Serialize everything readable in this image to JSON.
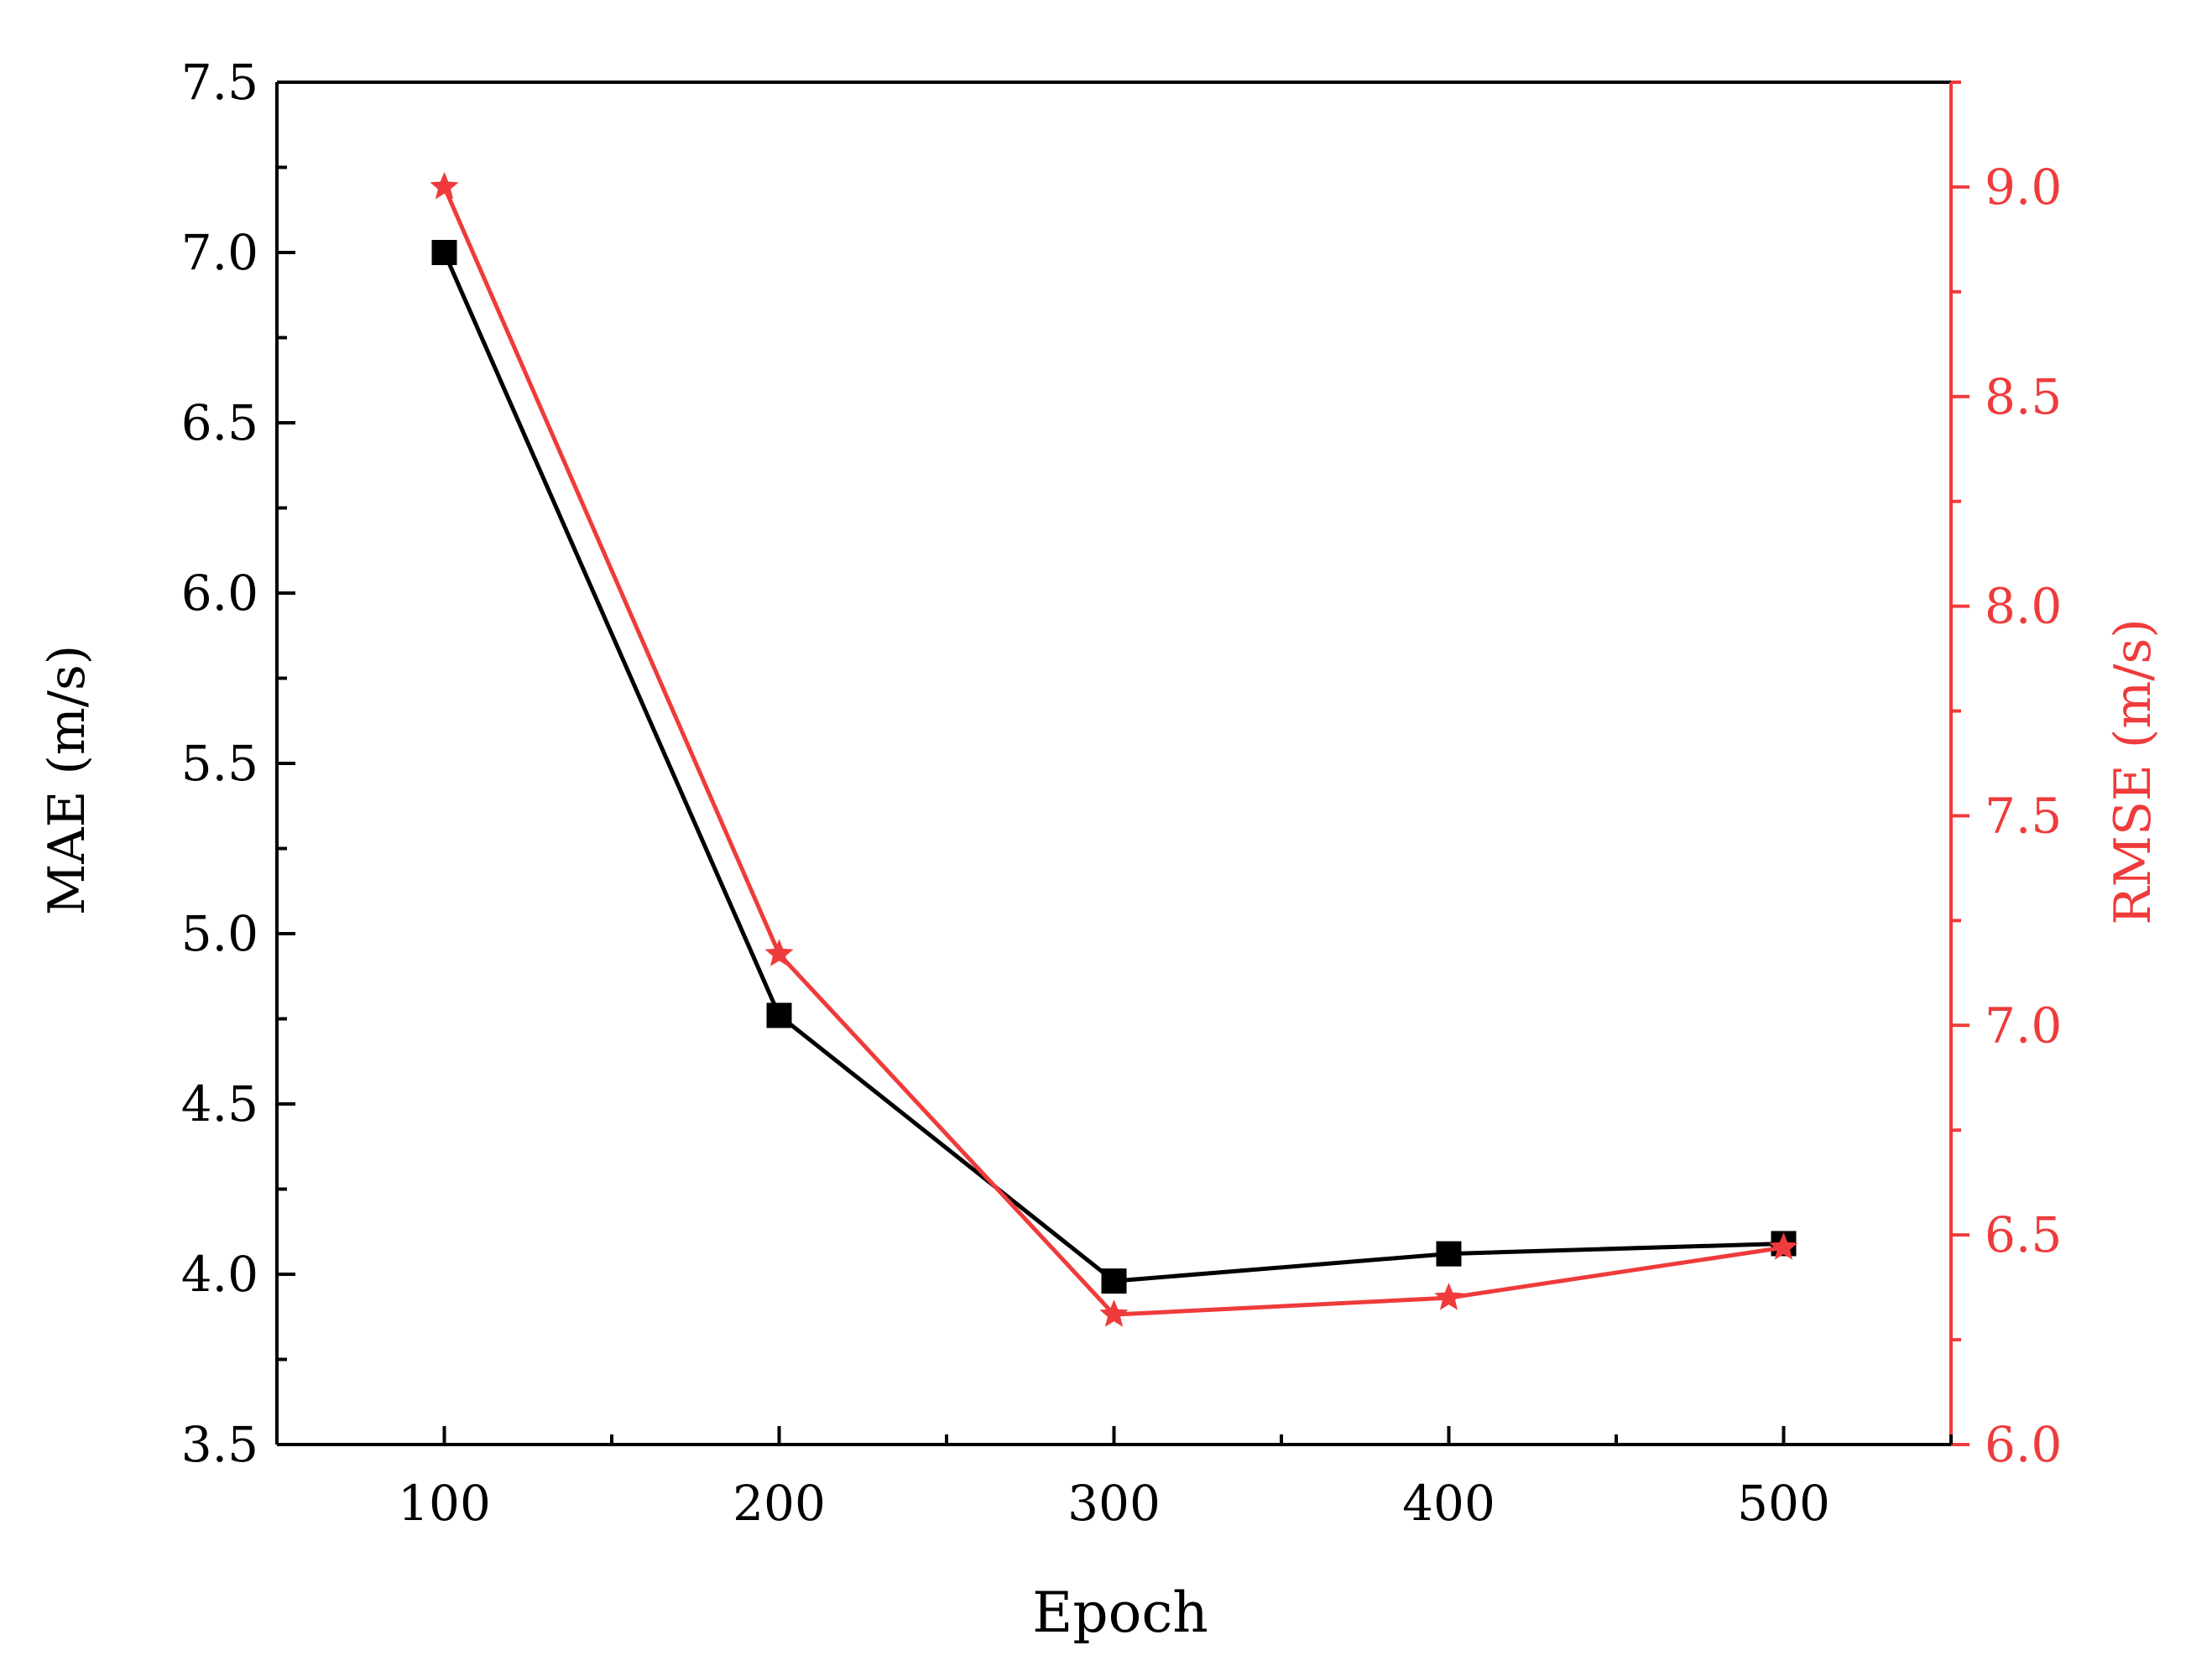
{
  "chart_data": {
    "type": "line",
    "xlabel": "Epoch",
    "x": [
      100,
      200,
      300,
      400,
      500
    ],
    "x_ticks": [
      "100",
      "200",
      "300",
      "400",
      "500"
    ],
    "xlim": [
      50,
      550
    ],
    "y_left": {
      "label": "MAE (m/s)",
      "lim": [
        3.5,
        7.5
      ],
      "ticks": [
        "3.5",
        "4.0",
        "4.5",
        "5.0",
        "5.5",
        "6.0",
        "6.5",
        "7.0",
        "7.5"
      ],
      "color": "#000000"
    },
    "y_right": {
      "label": "RMSE (m/s)",
      "lim": [
        6.0,
        9.25
      ],
      "ticks": [
        "6.0",
        "6.5",
        "7.0",
        "7.5",
        "8.0",
        "8.5",
        "9.0"
      ],
      "color": "#ef3b3b"
    },
    "series": [
      {
        "axis": "left",
        "marker": "square",
        "color": "#000000",
        "values": [
          7.0,
          4.76,
          3.98,
          4.06,
          4.09
        ]
      },
      {
        "axis": "right",
        "marker": "star",
        "color": "#ef3b3b",
        "values": [
          9.0,
          7.17,
          6.31,
          6.35,
          6.47
        ]
      }
    ],
    "grid": false
  }
}
